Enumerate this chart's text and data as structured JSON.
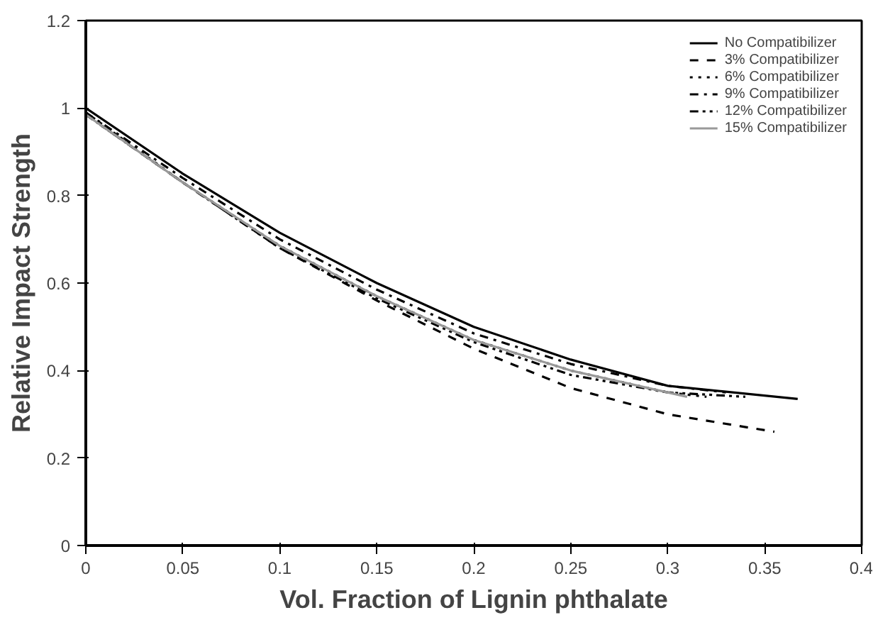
{
  "chart_data": {
    "type": "line",
    "xlabel": "Vol. Fraction of Lignin phthalate",
    "ylabel": "Relative Impact Strength",
    "xlim": [
      0,
      0.4
    ],
    "ylim": [
      0,
      1.2
    ],
    "xticks": [
      0,
      0.05,
      0.1,
      0.15,
      0.2,
      0.25,
      0.3,
      0.35,
      0.4
    ],
    "yticks": [
      0,
      0.2,
      0.4,
      0.6,
      0.8,
      1,
      1.2
    ],
    "grid": false,
    "legend": "top right",
    "series": [
      {
        "name": "No Compatibilizer",
        "color": "#000000",
        "line_style": "solid",
        "x": [
          0,
          0.05,
          0.1,
          0.15,
          0.2,
          0.25,
          0.3,
          0.367
        ],
        "values": [
          1.0,
          0.85,
          0.715,
          0.6,
          0.5,
          0.425,
          0.365,
          0.335
        ]
      },
      {
        "name": "3% Compatibilizer",
        "color": "#000000",
        "line_style": "dashed",
        "x": [
          0,
          0.05,
          0.1,
          0.15,
          0.2,
          0.25,
          0.3,
          0.355
        ],
        "values": [
          0.985,
          0.83,
          0.68,
          0.56,
          0.45,
          0.36,
          0.3,
          0.26
        ]
      },
      {
        "name": "6% Compatibilizer",
        "color": "#000000",
        "line_style": "dotted",
        "x": [
          0,
          0.05,
          0.1,
          0.15,
          0.2,
          0.25,
          0.3,
          0.32
        ],
        "values": [
          0.99,
          0.83,
          0.685,
          0.57,
          0.47,
          0.4,
          0.35,
          0.34
        ]
      },
      {
        "name": "9% Compatibilizer",
        "color": "#000000",
        "line_style": "dashdot",
        "x": [
          0,
          0.05,
          0.1,
          0.15,
          0.2,
          0.25,
          0.3,
          0.33
        ],
        "values": [
          0.99,
          0.84,
          0.7,
          0.585,
          0.485,
          0.415,
          0.365,
          0.35
        ]
      },
      {
        "name": "12% Compatibilizer",
        "color": "#000000",
        "line_style": "dashdotdot",
        "x": [
          0,
          0.05,
          0.1,
          0.15,
          0.2,
          0.25,
          0.3,
          0.34
        ],
        "values": [
          0.985,
          0.83,
          0.68,
          0.565,
          0.465,
          0.39,
          0.35,
          0.34
        ]
      },
      {
        "name": "15% Compatibilizer",
        "color": "#999999",
        "line_style": "solid",
        "x": [
          0,
          0.05,
          0.1,
          0.15,
          0.2,
          0.25,
          0.31
        ],
        "values": [
          0.985,
          0.83,
          0.685,
          0.57,
          0.47,
          0.4,
          0.34
        ]
      }
    ]
  }
}
